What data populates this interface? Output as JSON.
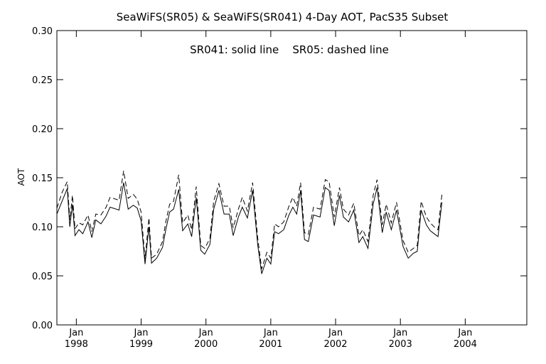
{
  "chart_data": {
    "type": "line",
    "title": "SeaWiFS(SR05) & SeaWiFS(SR041) 4-Day AOT, PacS35 Subset",
    "annotation": "SR041: solid line    SR05: dashed line",
    "ylabel": "AOT",
    "xlabel": "",
    "ylim": [
      0.0,
      0.3
    ],
    "xlim": [
      1997.7,
      2004.95
    ],
    "yticks": [
      "0.00",
      "0.05",
      "0.10",
      "0.15",
      "0.20",
      "0.25",
      "0.30"
    ],
    "xticks": [
      {
        "x": 1998,
        "month": "Jan",
        "year": "1998"
      },
      {
        "x": 1999,
        "month": "Jan",
        "year": "1999"
      },
      {
        "x": 2000,
        "month": "Jan",
        "year": "2000"
      },
      {
        "x": 2001,
        "month": "Jan",
        "year": "2001"
      },
      {
        "x": 2002,
        "month": "Jan",
        "year": "2002"
      },
      {
        "x": 2003,
        "month": "Jan",
        "year": "2003"
      },
      {
        "x": 2004,
        "month": "Jan",
        "year": "2004"
      }
    ],
    "grid": false,
    "series": [
      {
        "name": "SR041",
        "style": "solid",
        "color": "#000000",
        "points": [
          [
            1997.7,
            0.113
          ],
          [
            1997.78,
            0.126
          ],
          [
            1997.86,
            0.139
          ],
          [
            1997.9,
            0.1
          ],
          [
            1997.94,
            0.123
          ],
          [
            1997.98,
            0.091
          ],
          [
            1998.04,
            0.097
          ],
          [
            1998.1,
            0.093
          ],
          [
            1998.18,
            0.105
          ],
          [
            1998.24,
            0.089
          ],
          [
            1998.3,
            0.107
          ],
          [
            1998.38,
            0.103
          ],
          [
            1998.46,
            0.111
          ],
          [
            1998.52,
            0.12
          ],
          [
            1998.66,
            0.117
          ],
          [
            1998.73,
            0.145
          ],
          [
            1998.8,
            0.118
          ],
          [
            1998.88,
            0.122
          ],
          [
            1998.94,
            0.119
          ],
          [
            1999.0,
            0.106
          ],
          [
            1999.06,
            0.062
          ],
          [
            1999.12,
            0.1
          ],
          [
            1999.16,
            0.063
          ],
          [
            1999.24,
            0.068
          ],
          [
            1999.33,
            0.079
          ],
          [
            1999.38,
            0.097
          ],
          [
            1999.44,
            0.115
          ],
          [
            1999.5,
            0.118
          ],
          [
            1999.58,
            0.138
          ],
          [
            1999.64,
            0.096
          ],
          [
            1999.72,
            0.103
          ],
          [
            1999.78,
            0.09
          ],
          [
            1999.85,
            0.13
          ],
          [
            1999.92,
            0.076
          ],
          [
            1999.98,
            0.072
          ],
          [
            2000.06,
            0.082
          ],
          [
            2000.12,
            0.118
          ],
          [
            2000.2,
            0.137
          ],
          [
            2000.28,
            0.113
          ],
          [
            2000.36,
            0.113
          ],
          [
            2000.42,
            0.091
          ],
          [
            2000.5,
            0.11
          ],
          [
            2000.56,
            0.12
          ],
          [
            2000.64,
            0.109
          ],
          [
            2000.72,
            0.137
          ],
          [
            2000.8,
            0.081
          ],
          [
            2000.86,
            0.052
          ],
          [
            2000.94,
            0.068
          ],
          [
            2001.0,
            0.062
          ],
          [
            2001.06,
            0.095
          ],
          [
            2001.12,
            0.093
          ],
          [
            2001.2,
            0.097
          ],
          [
            2001.28,
            0.112
          ],
          [
            2001.34,
            0.12
          ],
          [
            2001.4,
            0.113
          ],
          [
            2001.46,
            0.137
          ],
          [
            2001.52,
            0.087
          ],
          [
            2001.58,
            0.085
          ],
          [
            2001.66,
            0.112
          ],
          [
            2001.76,
            0.11
          ],
          [
            2001.84,
            0.14
          ],
          [
            2001.9,
            0.137
          ],
          [
            2001.98,
            0.101
          ],
          [
            2002.06,
            0.132
          ],
          [
            2002.12,
            0.11
          ],
          [
            2002.2,
            0.105
          ],
          [
            2002.28,
            0.117
          ],
          [
            2002.36,
            0.084
          ],
          [
            2002.42,
            0.09
          ],
          [
            2002.5,
            0.078
          ],
          [
            2002.58,
            0.123
          ],
          [
            2002.64,
            0.14
          ],
          [
            2002.72,
            0.094
          ],
          [
            2002.78,
            0.115
          ],
          [
            2002.86,
            0.097
          ],
          [
            2002.94,
            0.117
          ],
          [
            2003.04,
            0.08
          ],
          [
            2003.12,
            0.068
          ],
          [
            2003.2,
            0.073
          ],
          [
            2003.26,
            0.075
          ],
          [
            2003.32,
            0.117
          ],
          [
            2003.4,
            0.102
          ],
          [
            2003.46,
            0.096
          ],
          [
            2003.52,
            0.093
          ],
          [
            2003.58,
            0.09
          ],
          [
            2003.64,
            0.125
          ]
        ]
      },
      {
        "name": "SR05",
        "style": "dashed",
        "color": "#000000",
        "points": [
          [
            1997.7,
            0.119
          ],
          [
            1997.78,
            0.135
          ],
          [
            1997.86,
            0.146
          ],
          [
            1997.9,
            0.107
          ],
          [
            1997.94,
            0.132
          ],
          [
            1997.98,
            0.098
          ],
          [
            1998.04,
            0.104
          ],
          [
            1998.1,
            0.102
          ],
          [
            1998.18,
            0.112
          ],
          [
            1998.24,
            0.095
          ],
          [
            1998.3,
            0.113
          ],
          [
            1998.38,
            0.112
          ],
          [
            1998.46,
            0.12
          ],
          [
            1998.52,
            0.13
          ],
          [
            1998.66,
            0.127
          ],
          [
            1998.73,
            0.157
          ],
          [
            1998.8,
            0.129
          ],
          [
            1998.88,
            0.133
          ],
          [
            1998.94,
            0.128
          ],
          [
            1999.0,
            0.115
          ],
          [
            1999.06,
            0.067
          ],
          [
            1999.12,
            0.109
          ],
          [
            1999.16,
            0.068
          ],
          [
            1999.24,
            0.072
          ],
          [
            1999.33,
            0.085
          ],
          [
            1999.38,
            0.105
          ],
          [
            1999.44,
            0.123
          ],
          [
            1999.5,
            0.126
          ],
          [
            1999.58,
            0.153
          ],
          [
            1999.64,
            0.104
          ],
          [
            1999.72,
            0.112
          ],
          [
            1999.78,
            0.097
          ],
          [
            1999.85,
            0.141
          ],
          [
            1999.92,
            0.081
          ],
          [
            1999.98,
            0.078
          ],
          [
            2000.06,
            0.088
          ],
          [
            2000.12,
            0.126
          ],
          [
            2000.2,
            0.144
          ],
          [
            2000.28,
            0.121
          ],
          [
            2000.36,
            0.121
          ],
          [
            2000.42,
            0.099
          ],
          [
            2000.5,
            0.118
          ],
          [
            2000.56,
            0.13
          ],
          [
            2000.64,
            0.116
          ],
          [
            2000.72,
            0.145
          ],
          [
            2000.8,
            0.088
          ],
          [
            2000.86,
            0.057
          ],
          [
            2000.94,
            0.074
          ],
          [
            2001.0,
            0.068
          ],
          [
            2001.06,
            0.103
          ],
          [
            2001.12,
            0.1
          ],
          [
            2001.2,
            0.105
          ],
          [
            2001.28,
            0.121
          ],
          [
            2001.34,
            0.13
          ],
          [
            2001.4,
            0.121
          ],
          [
            2001.46,
            0.145
          ],
          [
            2001.52,
            0.094
          ],
          [
            2001.58,
            0.092
          ],
          [
            2001.66,
            0.12
          ],
          [
            2001.76,
            0.118
          ],
          [
            2001.84,
            0.148
          ],
          [
            2001.9,
            0.146
          ],
          [
            2001.98,
            0.11
          ],
          [
            2002.06,
            0.14
          ],
          [
            2002.12,
            0.118
          ],
          [
            2002.2,
            0.112
          ],
          [
            2002.28,
            0.124
          ],
          [
            2002.36,
            0.091
          ],
          [
            2002.42,
            0.097
          ],
          [
            2002.5,
            0.085
          ],
          [
            2002.58,
            0.132
          ],
          [
            2002.64,
            0.148
          ],
          [
            2002.72,
            0.102
          ],
          [
            2002.78,
            0.123
          ],
          [
            2002.86,
            0.104
          ],
          [
            2002.94,
            0.125
          ],
          [
            2003.04,
            0.086
          ],
          [
            2003.12,
            0.074
          ],
          [
            2003.2,
            0.078
          ],
          [
            2003.26,
            0.081
          ],
          [
            2003.32,
            0.126
          ],
          [
            2003.4,
            0.11
          ],
          [
            2003.46,
            0.104
          ],
          [
            2003.52,
            0.1
          ],
          [
            2003.58,
            0.097
          ],
          [
            2003.64,
            0.133
          ]
        ]
      }
    ]
  }
}
